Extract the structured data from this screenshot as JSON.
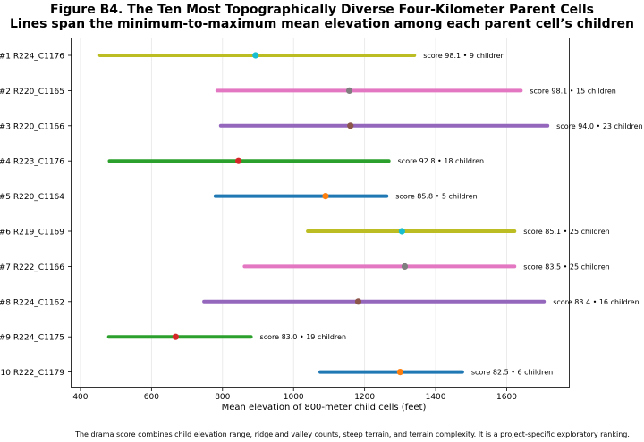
{
  "chart_data": {
    "type": "range",
    "title": "Figure B4. The Ten Most Topographically Diverse Four-Kilometer Parent Cells",
    "subtitle": "Lines span the minimum-to-maximum mean elevation among each parent cell’s children",
    "xlabel": "Mean elevation of 800-meter child cells (feet)",
    "xlim": [
      375,
      1775
    ],
    "xticks": [
      400,
      600,
      800,
      1000,
      1200,
      1400,
      1600
    ],
    "grid": "vertical",
    "footnote": "The drama score combines child elevation range, ridge and valley counts, steep terrain, and terrain complexity. It is a project-specific exploratory ranking.",
    "rows": [
      {
        "label": "#1  R224_C1176",
        "min": 455,
        "max": 1340,
        "mean": 893,
        "annotation": "score 98.1 • 9 children",
        "line_color": "#bcbd22",
        "dot_color": "#17becf"
      },
      {
        "label": "#2  R220_C1165",
        "min": 785,
        "max": 1640,
        "mean": 1157,
        "annotation": "score 98.1 • 15 children",
        "line_color": "#e377c2",
        "dot_color": "#7f7f7f"
      },
      {
        "label": "#3  R220_C1166",
        "min": 795,
        "max": 1715,
        "mean": 1160,
        "annotation": "score 94.0 • 23 children",
        "line_color": "#9467bd",
        "dot_color": "#8c564b"
      },
      {
        "label": "#4  R223_C1176",
        "min": 482,
        "max": 1268,
        "mean": 845,
        "annotation": "score 92.8 • 18 children",
        "line_color": "#2ca02c",
        "dot_color": "#d62728"
      },
      {
        "label": "#5  R220_C1164",
        "min": 780,
        "max": 1262,
        "mean": 1090,
        "annotation": "score 85.8 • 5 children",
        "line_color": "#1f77b4",
        "dot_color": "#ff7f0e"
      },
      {
        "label": "#6  R219_C1169",
        "min": 1040,
        "max": 1622,
        "mean": 1305,
        "annotation": "score 85.1 • 25 children",
        "line_color": "#bcbd22",
        "dot_color": "#17becf"
      },
      {
        "label": "#7  R222_C1166",
        "min": 862,
        "max": 1622,
        "mean": 1313,
        "annotation": "score 83.5 • 25 children",
        "line_color": "#e377c2",
        "dot_color": "#7f7f7f"
      },
      {
        "label": "#8  R224_C1162",
        "min": 748,
        "max": 1705,
        "mean": 1182,
        "annotation": "score 83.4 • 16 children",
        "line_color": "#9467bd",
        "dot_color": "#8c564b"
      },
      {
        "label": "#9  R224_C1175",
        "min": 480,
        "max": 880,
        "mean": 668,
        "annotation": "score 83.0 • 19 children",
        "line_color": "#2ca02c",
        "dot_color": "#d62728"
      },
      {
        "label": "#10  R222_C1179",
        "min": 1075,
        "max": 1475,
        "mean": 1300,
        "annotation": "score 82.5 • 6 children",
        "line_color": "#1f77b4",
        "dot_color": "#ff7f0e"
      }
    ]
  }
}
